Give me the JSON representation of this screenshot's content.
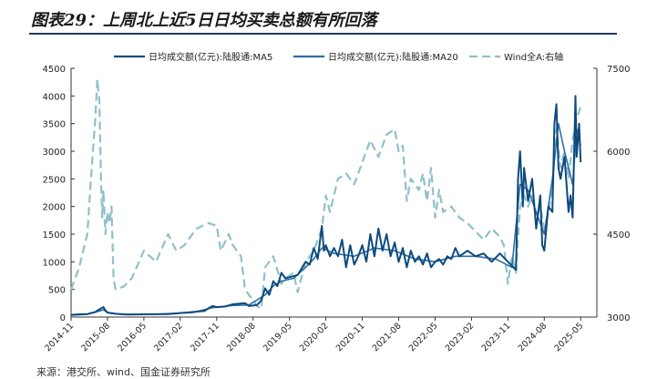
{
  "title": "图表29：上周北上近5日日均买卖总额有所回落",
  "source": "来源：港交所、wind、国金证券研究所",
  "colors": {
    "ma5": "#0d4a7d",
    "ma20": "#2c6ea3",
    "wind": "#8fc0cc",
    "axis": "#333333"
  },
  "chart_data": {
    "type": "line",
    "title": "上周北上近5日日均买卖总额有所回落",
    "legend": [
      "日均成交额(亿元):陆股通:MA5",
      "日均成交额(亿元):陆股通:MA20",
      "Wind全A:右轴"
    ],
    "legend_position": "top",
    "left_axis": {
      "ylim": [
        0,
        4500
      ],
      "ticks": [
        "0",
        "500",
        "1000",
        "1500",
        "2000",
        "2500",
        "3000",
        "3500",
        "4000",
        "4500"
      ]
    },
    "right_axis": {
      "ylim": [
        3000,
        7500
      ],
      "ticks": [
        "3000",
        "4500",
        "6000",
        "7500"
      ]
    },
    "x_ticks": [
      "2014-11",
      "2015-08",
      "2016-05",
      "2017-02",
      "2017-11",
      "2018-08",
      "2019-05",
      "2020-02",
      "2020-11",
      "2021-08",
      "2022-05",
      "2023-02",
      "2023-11",
      "2024-08",
      "2025-05"
    ],
    "x_range_months": [
      0,
      130
    ],
    "series": [
      {
        "name": "日均成交额(亿元):陆股通:MA5",
        "axis": "left",
        "style": "solid",
        "points": [
          [
            0,
            40
          ],
          [
            2,
            50
          ],
          [
            4,
            55
          ],
          [
            6,
            90
          ],
          [
            7,
            140
          ],
          [
            8,
            180
          ],
          [
            8.5,
            120
          ],
          [
            9,
            80
          ],
          [
            11,
            60
          ],
          [
            14,
            45
          ],
          [
            18,
            50
          ],
          [
            24,
            55
          ],
          [
            30,
            90
          ],
          [
            33,
            110
          ],
          [
            34,
            160
          ],
          [
            35,
            200
          ],
          [
            36,
            180
          ],
          [
            38,
            190
          ],
          [
            40,
            230
          ],
          [
            43,
            250
          ],
          [
            44,
            200
          ],
          [
            46,
            220
          ],
          [
            47,
            300
          ],
          [
            48,
            520
          ],
          [
            49,
            400
          ],
          [
            50,
            650
          ],
          [
            51,
            560
          ],
          [
            52,
            800
          ],
          [
            53,
            700
          ],
          [
            54,
            720
          ],
          [
            56,
            760
          ],
          [
            58,
            1000
          ],
          [
            59,
            950
          ],
          [
            60,
            1250
          ],
          [
            61,
            1050
          ],
          [
            62,
            1650
          ],
          [
            62.5,
            1200
          ],
          [
            63,
            1300
          ],
          [
            64,
            1100
          ],
          [
            65,
            1250
          ],
          [
            66,
            1100
          ],
          [
            67,
            1400
          ],
          [
            68,
            900
          ],
          [
            69,
            1300
          ],
          [
            70,
            950
          ],
          [
            71,
            1100
          ],
          [
            72,
            1300
          ],
          [
            73,
            1000
          ],
          [
            74,
            1500
          ],
          [
            75,
            1100
          ],
          [
            76,
            1600
          ],
          [
            77,
            1200
          ],
          [
            78,
            1500
          ],
          [
            79,
            1100
          ],
          [
            80,
            1350
          ],
          [
            81,
            1000
          ],
          [
            82,
            1250
          ],
          [
            83,
            900
          ],
          [
            84,
            1200
          ],
          [
            85,
            1000
          ],
          [
            86,
            1100
          ],
          [
            87,
            950
          ],
          [
            88,
            1150
          ],
          [
            89,
            900
          ],
          [
            90,
            1000
          ],
          [
            91,
            1050
          ],
          [
            92,
            950
          ],
          [
            93,
            1100
          ],
          [
            94,
            1050
          ],
          [
            95,
            1250
          ],
          [
            96,
            1100
          ],
          [
            98,
            1200
          ],
          [
            100,
            1100
          ],
          [
            102,
            1150
          ],
          [
            104,
            1000
          ],
          [
            106,
            1150
          ],
          [
            108,
            1000
          ],
          [
            110,
            850
          ],
          [
            110.5,
            2500
          ],
          [
            111,
            3000
          ],
          [
            111.7,
            2000
          ],
          [
            112,
            2700
          ],
          [
            113,
            2100
          ],
          [
            114,
            2500
          ],
          [
            115,
            1600
          ],
          [
            116,
            2200
          ],
          [
            116.5,
            1300
          ],
          [
            117,
            1200
          ],
          [
            118,
            2000
          ],
          [
            119,
            1900
          ],
          [
            119.5,
            3500
          ],
          [
            120,
            3850
          ],
          [
            120.5,
            2700
          ],
          [
            121,
            2500
          ],
          [
            122,
            2900
          ],
          [
            123,
            1900
          ],
          [
            123.5,
            2200
          ],
          [
            124,
            1800
          ],
          [
            124.7,
            4000
          ],
          [
            125,
            2900
          ],
          [
            125.6,
            3500
          ],
          [
            126,
            2800
          ]
        ]
      },
      {
        "name": "日均成交额(亿元):陆股通:MA20",
        "axis": "left",
        "style": "solid",
        "points": [
          [
            0,
            35
          ],
          [
            4,
            50
          ],
          [
            7,
            110
          ],
          [
            8,
            130
          ],
          [
            9,
            80
          ],
          [
            12,
            50
          ],
          [
            20,
            50
          ],
          [
            30,
            80
          ],
          [
            35,
            170
          ],
          [
            40,
            210
          ],
          [
            44,
            220
          ],
          [
            48,
            400
          ],
          [
            50,
            560
          ],
          [
            52,
            650
          ],
          [
            55,
            700
          ],
          [
            58,
            900
          ],
          [
            60,
            1050
          ],
          [
            62,
            1250
          ],
          [
            65,
            1150
          ],
          [
            70,
            1100
          ],
          [
            75,
            1250
          ],
          [
            80,
            1200
          ],
          [
            85,
            1050
          ],
          [
            90,
            1000
          ],
          [
            95,
            1100
          ],
          [
            100,
            1100
          ],
          [
            105,
            1050
          ],
          [
            109,
            900
          ],
          [
            111,
            2400
          ],
          [
            113,
            2300
          ],
          [
            115,
            1900
          ],
          [
            117,
            1500
          ],
          [
            119,
            2500
          ],
          [
            120.5,
            3500
          ],
          [
            122,
            3000
          ],
          [
            124,
            2400
          ],
          [
            125,
            3400
          ],
          [
            126,
            3100
          ]
        ]
      },
      {
        "name": "Wind全A:右轴",
        "axis": "right",
        "style": "dashed",
        "points": [
          [
            0,
            3500
          ],
          [
            2,
            3900
          ],
          [
            4,
            4500
          ],
          [
            5,
            5600
          ],
          [
            6,
            6600
          ],
          [
            6.5,
            7300
          ],
          [
            7,
            6900
          ],
          [
            7.4,
            5500
          ],
          [
            7.7,
            4800
          ],
          [
            8,
            5300
          ],
          [
            8.5,
            4500
          ],
          [
            9,
            4900
          ],
          [
            9.5,
            4700
          ],
          [
            10,
            5000
          ],
          [
            10.5,
            3700
          ],
          [
            11,
            3500
          ],
          [
            13,
            3550
          ],
          [
            15,
            3700
          ],
          [
            18,
            4200
          ],
          [
            21,
            4000
          ],
          [
            24,
            4500
          ],
          [
            26,
            4200
          ],
          [
            28,
            4300
          ],
          [
            31,
            4600
          ],
          [
            34,
            4700
          ],
          [
            36,
            4650
          ],
          [
            37,
            4200
          ],
          [
            39,
            4500
          ],
          [
            40,
            4300
          ],
          [
            42,
            4100
          ],
          [
            43,
            3500
          ],
          [
            44,
            3400
          ],
          [
            46,
            3200
          ],
          [
            47,
            3150
          ],
          [
            48,
            3900
          ],
          [
            50,
            4100
          ],
          [
            52,
            3600
          ],
          [
            53,
            3700
          ],
          [
            55,
            3800
          ],
          [
            56,
            3450
          ],
          [
            58,
            4000
          ],
          [
            60,
            4200
          ],
          [
            62,
            4600
          ],
          [
            63,
            5200
          ],
          [
            64,
            4900
          ],
          [
            66,
            5500
          ],
          [
            68,
            5600
          ],
          [
            70,
            5400
          ],
          [
            72,
            5800
          ],
          [
            74,
            6200
          ],
          [
            76,
            5900
          ],
          [
            78,
            6300
          ],
          [
            80,
            6400
          ],
          [
            81,
            6000
          ],
          [
            82,
            6100
          ],
          [
            83,
            5100
          ],
          [
            84,
            5500
          ],
          [
            86,
            5300
          ],
          [
            87,
            5600
          ],
          [
            88,
            5100
          ],
          [
            89,
            5700
          ],
          [
            90,
            4800
          ],
          [
            91,
            5300
          ],
          [
            92,
            4900
          ],
          [
            94,
            5000
          ],
          [
            96,
            4800
          ],
          [
            98,
            4700
          ],
          [
            100,
            4550
          ],
          [
            102,
            4400
          ],
          [
            104,
            4600
          ],
          [
            106,
            4450
          ],
          [
            107,
            4300
          ],
          [
            108,
            3600
          ],
          [
            109,
            4100
          ],
          [
            110,
            3800
          ],
          [
            111,
            5000
          ],
          [
            112,
            5200
          ],
          [
            113,
            5000
          ],
          [
            114,
            5200
          ],
          [
            115,
            4800
          ],
          [
            116,
            5000
          ],
          [
            117,
            4600
          ],
          [
            118,
            4900
          ],
          [
            119,
            5300
          ],
          [
            120,
            6400
          ],
          [
            121,
            5700
          ],
          [
            122,
            6000
          ],
          [
            123,
            5500
          ],
          [
            124,
            6200
          ],
          [
            125,
            6600
          ],
          [
            126,
            6800
          ]
        ]
      }
    ]
  }
}
